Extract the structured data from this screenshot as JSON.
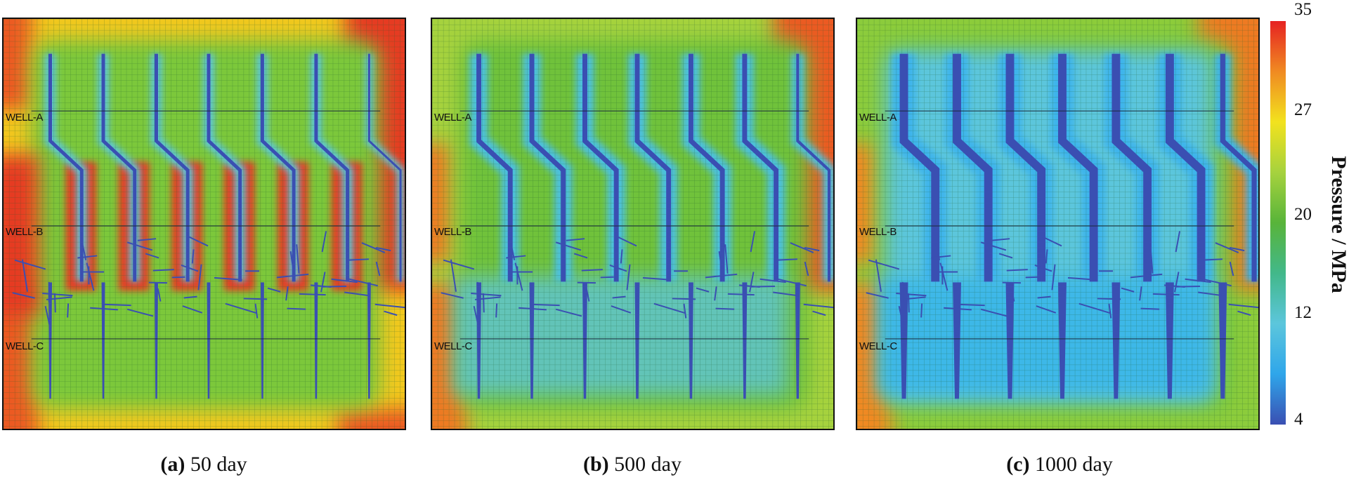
{
  "panels": [
    {
      "label": "(a)",
      "text": " 50 day",
      "wells": [
        "WELL-A",
        "WELL-B",
        "WELL-C"
      ]
    },
    {
      "label": "(b)",
      "text": " 500 day",
      "wells": [
        "WELL-A",
        "WELL-B",
        "WELL-C"
      ]
    },
    {
      "label": "(c)",
      "text": " 1000 day",
      "wells": [
        "WELL-A",
        "WELL-B",
        "WELL-C"
      ]
    }
  ],
  "colorbar": {
    "title": "Pressure / MPa",
    "ticks": [
      "35",
      "27",
      "20",
      "12",
      "4"
    ],
    "range": [
      4,
      35
    ],
    "colors": [
      "#e62222",
      "#f08a22",
      "#f2e21e",
      "#a6d23e",
      "#58b43a",
      "#42b88a",
      "#5cc6dc",
      "#2fa6ea",
      "#3a4fb2"
    ]
  }
}
